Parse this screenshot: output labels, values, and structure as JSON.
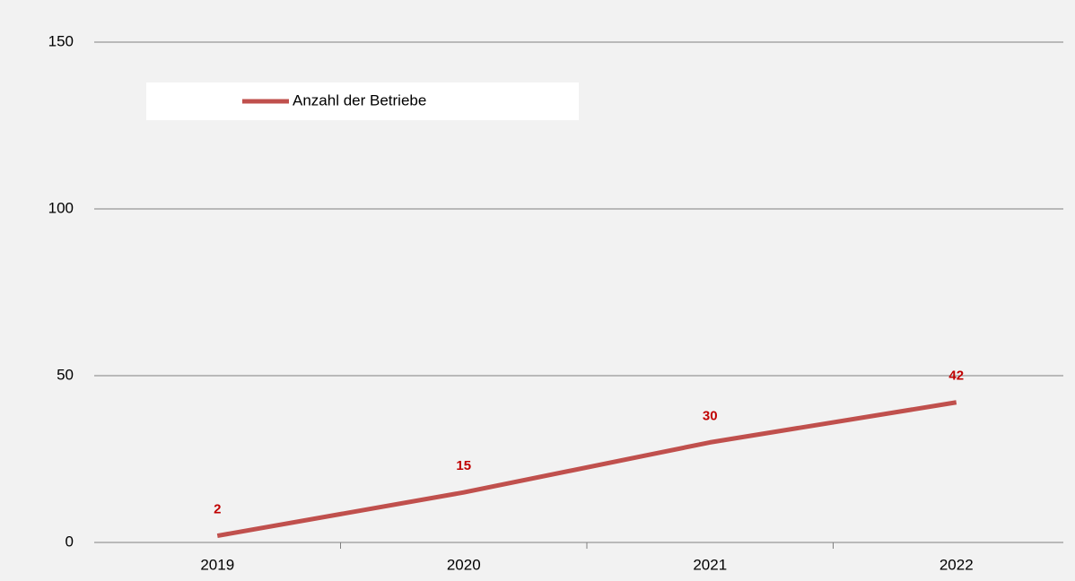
{
  "chart_data": {
    "type": "line",
    "categories": [
      "2019",
      "2020",
      "2021",
      "2022"
    ],
    "series": [
      {
        "name": "Anzahl der Betriebe",
        "color": "#c0504d",
        "values": [
          2,
          15,
          30,
          42
        ]
      }
    ],
    "ylim": [
      0,
      150
    ],
    "yticks": [
      0,
      50,
      100,
      150
    ],
    "grid": true,
    "legend": "upper left",
    "data_labels": true,
    "data_label_color": "#c00000"
  }
}
